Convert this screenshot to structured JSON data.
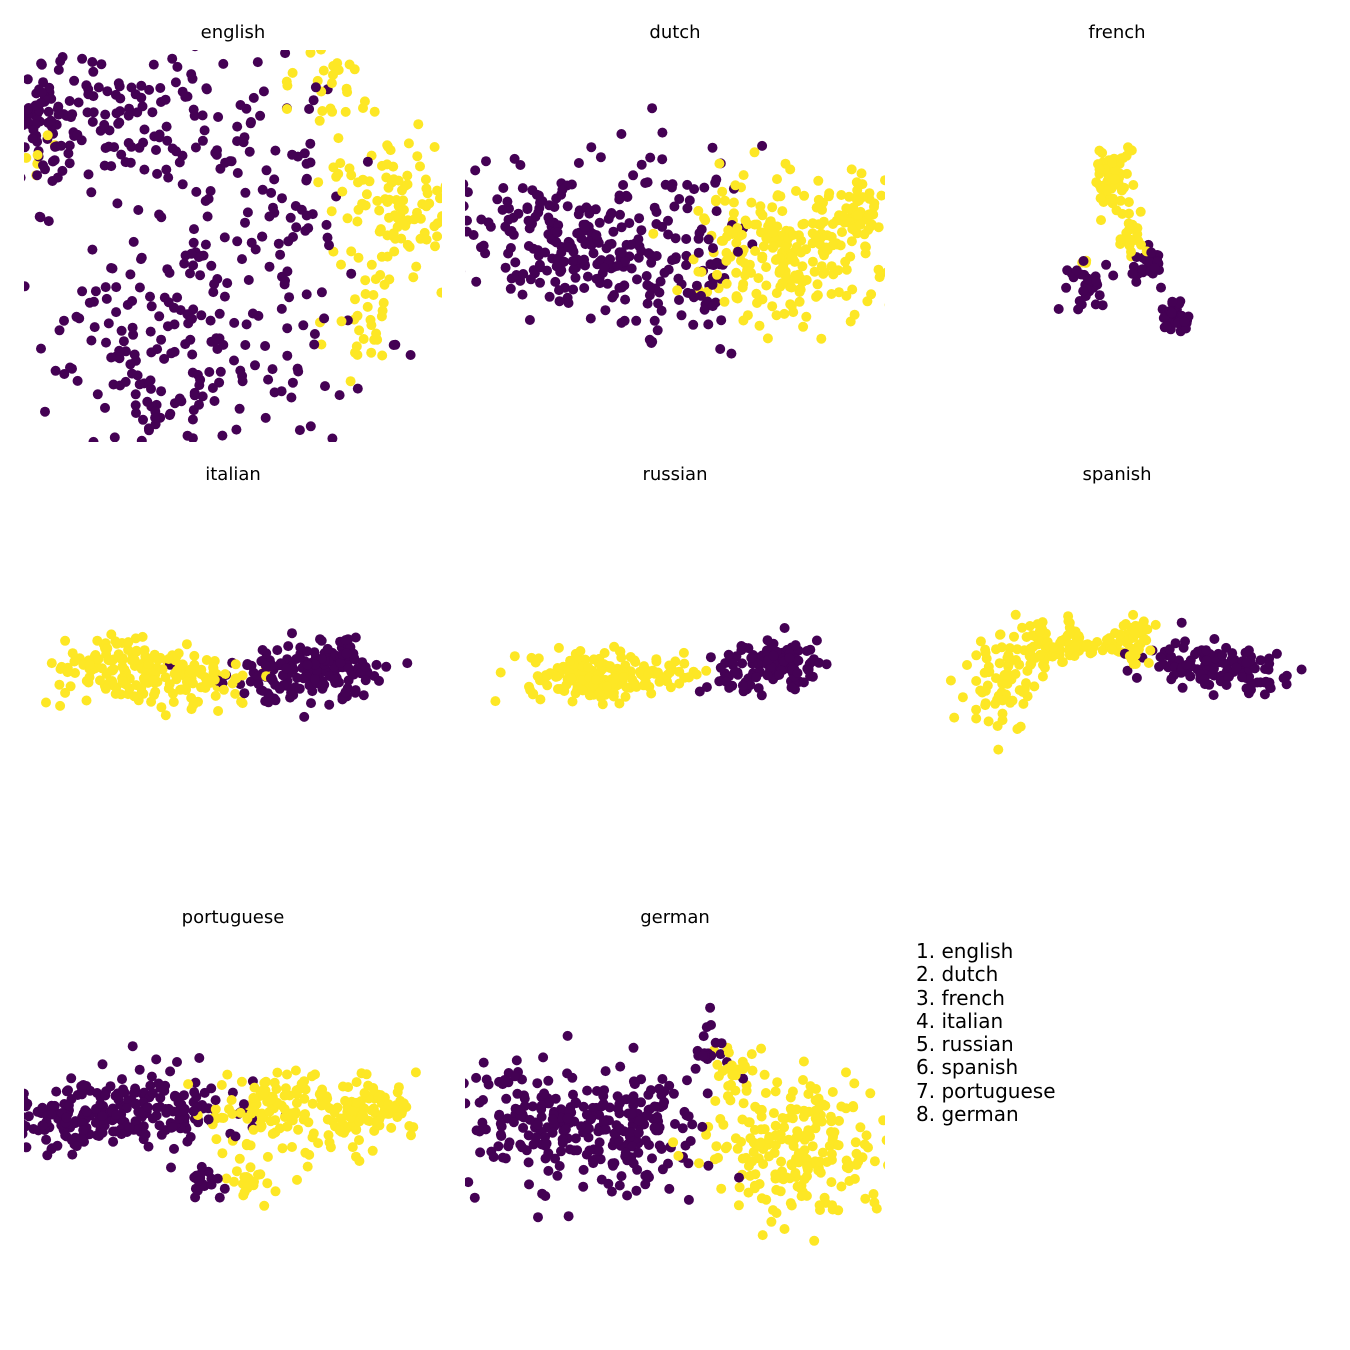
{
  "colors": {
    "class_0": "#440154",
    "class_1": "#fde725"
  },
  "legend": {
    "items": [
      "1. english",
      "2. dutch",
      "3. french",
      "4. italian",
      "5. russian",
      "6. spanish",
      "7. portuguese",
      "8. german"
    ]
  },
  "chart_data": [
    {
      "type": "scatter",
      "title": "english",
      "xlim": [
        0,
        100
      ],
      "ylim": [
        0,
        100
      ],
      "point_size": 5,
      "clusters": [
        {
          "class": 0,
          "count": 150,
          "center": [
            27,
            83
          ],
          "spread": [
            19,
            11
          ]
        },
        {
          "class": 0,
          "count": 55,
          "center": [
            5,
            83
          ],
          "spread": [
            4,
            6
          ]
        },
        {
          "class": 0,
          "count": 60,
          "center": [
            46,
            52
          ],
          "spread": [
            13,
            14
          ]
        },
        {
          "class": 0,
          "count": 190,
          "center": [
            38,
            22
          ],
          "spread": [
            20,
            14
          ]
        },
        {
          "class": 0,
          "count": 30,
          "center": [
            65,
            55
          ],
          "spread": [
            6,
            12
          ]
        },
        {
          "class": 1,
          "count": 110,
          "center": [
            88,
            60
          ],
          "spread": [
            9,
            9
          ]
        },
        {
          "class": 1,
          "count": 30,
          "center": [
            73,
            90
          ],
          "spread": [
            5,
            7
          ]
        },
        {
          "class": 1,
          "count": 30,
          "center": [
            82,
            30
          ],
          "spread": [
            6,
            8
          ]
        },
        {
          "class": 1,
          "count": 6,
          "center": [
            6,
            74
          ],
          "spread": [
            3,
            3
          ]
        }
      ]
    },
    {
      "type": "scatter",
      "title": "dutch",
      "xlim": [
        0,
        100
      ],
      "ylim": [
        0,
        100
      ],
      "point_size": 5,
      "clusters": [
        {
          "class": 0,
          "count": 200,
          "center": [
            22,
            51
          ],
          "spread": [
            14,
            9
          ]
        },
        {
          "class": 0,
          "count": 110,
          "center": [
            44,
            50
          ],
          "spread": [
            12,
            12
          ]
        },
        {
          "class": 0,
          "count": 20,
          "center": [
            58,
            40
          ],
          "spread": [
            4,
            10
          ]
        },
        {
          "class": 1,
          "count": 210,
          "center": [
            77,
            49
          ],
          "spread": [
            11,
            9
          ]
        },
        {
          "class": 1,
          "count": 50,
          "center": [
            93,
            58
          ],
          "spread": [
            3,
            5
          ]
        },
        {
          "class": 1,
          "count": 20,
          "center": [
            64,
            55
          ],
          "spread": [
            4,
            8
          ]
        }
      ]
    },
    {
      "type": "scatter",
      "title": "french",
      "xlim": [
        0,
        100
      ],
      "ylim": [
        0,
        100
      ],
      "point_size": 5,
      "clusters": [
        {
          "class": 1,
          "count": 60,
          "center": [
            49,
            67
          ],
          "spread": [
            2.5,
            5
          ]
        },
        {
          "class": 1,
          "count": 15,
          "center": [
            53,
            51
          ],
          "spread": [
            2,
            2
          ]
        },
        {
          "class": 1,
          "count": 8,
          "center": [
            52,
            57
          ],
          "spread": [
            2,
            3
          ]
        },
        {
          "class": 1,
          "count": 4,
          "center": [
            42,
            46
          ],
          "spread": [
            1,
            1
          ]
        },
        {
          "class": 0,
          "count": 30,
          "center": [
            57,
            45
          ],
          "spread": [
            2,
            3
          ]
        },
        {
          "class": 0,
          "count": 30,
          "center": [
            43,
            40
          ],
          "spread": [
            2.5,
            2.5
          ]
        },
        {
          "class": 0,
          "count": 40,
          "center": [
            64,
            32
          ],
          "spread": [
            1.5,
            2
          ]
        }
      ]
    },
    {
      "type": "scatter",
      "title": "italian",
      "xlim": [
        0,
        100
      ],
      "ylim": [
        0,
        100
      ],
      "point_size": 5,
      "clusters": [
        {
          "class": 1,
          "count": 150,
          "center": [
            24,
            55
          ],
          "spread": [
            10,
            3.5
          ]
        },
        {
          "class": 1,
          "count": 60,
          "center": [
            43,
            52
          ],
          "spread": [
            7,
            3.5
          ]
        },
        {
          "class": 0,
          "count": 140,
          "center": [
            66,
            54
          ],
          "spread": [
            9,
            3.5
          ]
        },
        {
          "class": 0,
          "count": 40,
          "center": [
            75,
            57
          ],
          "spread": [
            4,
            3
          ]
        }
      ]
    },
    {
      "type": "scatter",
      "title": "russian",
      "xlim": [
        0,
        100
      ],
      "ylim": [
        0,
        100
      ],
      "point_size": 5,
      "clusters": [
        {
          "class": 1,
          "count": 150,
          "center": [
            30,
            53
          ],
          "spread": [
            8,
            3
          ]
        },
        {
          "class": 1,
          "count": 25,
          "center": [
            50,
            55
          ],
          "spread": [
            4,
            2
          ]
        },
        {
          "class": 0,
          "count": 60,
          "center": [
            67,
            55
          ],
          "spread": [
            5,
            3
          ]
        },
        {
          "class": 0,
          "count": 70,
          "center": [
            78,
            57
          ],
          "spread": [
            4,
            3
          ]
        }
      ]
    },
    {
      "type": "scatter",
      "title": "spanish",
      "xlim": [
        0,
        100
      ],
      "ylim": [
        0,
        100
      ],
      "point_size": 5,
      "clusters": [
        {
          "class": 1,
          "count": 60,
          "center": [
            22,
            50
          ],
          "spread": [
            4,
            6
          ]
        },
        {
          "class": 1,
          "count": 40,
          "center": [
            30,
            60
          ],
          "spread": [
            6,
            3
          ]
        },
        {
          "class": 1,
          "count": 60,
          "center": [
            40,
            62
          ],
          "spread": [
            7,
            3
          ]
        },
        {
          "class": 1,
          "count": 40,
          "center": [
            53,
            63
          ],
          "spread": [
            3,
            3
          ]
        },
        {
          "class": 0,
          "count": 60,
          "center": [
            67,
            57
          ],
          "spread": [
            7,
            3
          ]
        },
        {
          "class": 0,
          "count": 70,
          "center": [
            80,
            54
          ],
          "spread": [
            6,
            3
          ]
        }
      ]
    },
    {
      "type": "scatter",
      "title": "portuguese",
      "xlim": [
        0,
        100
      ],
      "ylim": [
        0,
        100
      ],
      "point_size": 5,
      "clusters": [
        {
          "class": 0,
          "count": 110,
          "center": [
            12,
            53
          ],
          "spread": [
            8,
            4
          ]
        },
        {
          "class": 0,
          "count": 150,
          "center": [
            32,
            56
          ],
          "spread": [
            12,
            5
          ]
        },
        {
          "class": 0,
          "count": 20,
          "center": [
            43,
            37
          ],
          "spread": [
            3,
            2
          ]
        },
        {
          "class": 1,
          "count": 120,
          "center": [
            60,
            54
          ],
          "spread": [
            9,
            6
          ]
        },
        {
          "class": 1,
          "count": 100,
          "center": [
            82,
            55
          ],
          "spread": [
            6,
            4
          ]
        },
        {
          "class": 1,
          "count": 20,
          "center": [
            54,
            37
          ],
          "spread": [
            3,
            2
          ]
        }
      ]
    },
    {
      "type": "scatter",
      "title": "german",
      "xlim": [
        0,
        100
      ],
      "ylim": [
        0,
        100
      ],
      "point_size": 5,
      "clusters": [
        {
          "class": 0,
          "count": 220,
          "center": [
            24,
            52
          ],
          "spread": [
            14,
            8
          ]
        },
        {
          "class": 0,
          "count": 80,
          "center": [
            44,
            50
          ],
          "spread": [
            8,
            8
          ]
        },
        {
          "class": 0,
          "count": 20,
          "center": [
            58,
            68
          ],
          "spread": [
            2,
            4
          ]
        },
        {
          "class": 1,
          "count": 220,
          "center": [
            78,
            46
          ],
          "spread": [
            11,
            9
          ]
        },
        {
          "class": 1,
          "count": 20,
          "center": [
            64,
            65
          ],
          "spread": [
            3,
            3
          ]
        }
      ]
    }
  ]
}
